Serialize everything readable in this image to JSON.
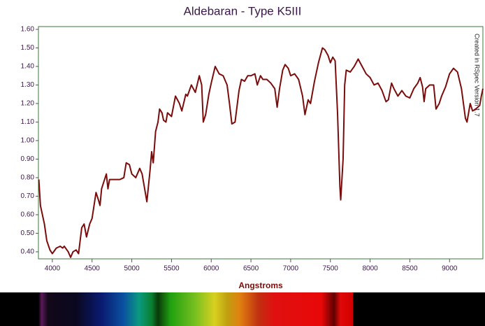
{
  "chart_data": {
    "type": "line",
    "title": "Aldebaran - Type K5III",
    "x_label": "Angstroms",
    "annotation": "Created in RSpec Version 1.7",
    "x": [
      3830,
      3850,
      3900,
      3930,
      3970,
      4000,
      4050,
      4100,
      4130,
      4150,
      4200,
      4230,
      4260,
      4300,
      4330,
      4370,
      4400,
      4430,
      4470,
      4500,
      4550,
      4580,
      4600,
      4620,
      4650,
      4680,
      4700,
      4720,
      4780,
      4850,
      4900,
      4930,
      4970,
      5000,
      5050,
      5100,
      5130,
      5170,
      5190,
      5230,
      5250,
      5270,
      5300,
      5330,
      5350,
      5380,
      5400,
      5430,
      5450,
      5500,
      5550,
      5600,
      5630,
      5680,
      5700,
      5750,
      5800,
      5850,
      5880,
      5900,
      5930,
      5970,
      6000,
      6050,
      6100,
      6150,
      6200,
      6230,
      6260,
      6300,
      6350,
      6380,
      6420,
      6460,
      6500,
      6550,
      6580,
      6620,
      6650,
      6700,
      6750,
      6800,
      6830,
      6860,
      6900,
      6930,
      6970,
      7000,
      7050,
      7100,
      7150,
      7180,
      7220,
      7250,
      7300,
      7350,
      7400,
      7430,
      7470,
      7500,
      7530,
      7560,
      7590,
      7620,
      7630,
      7660,
      7680,
      7700,
      7750,
      7800,
      7850,
      7900,
      7950,
      8000,
      8050,
      8100,
      8150,
      8200,
      8230,
      8270,
      8300,
      8350,
      8400,
      8450,
      8500,
      8550,
      8600,
      8630,
      8660,
      8680,
      8700,
      8750,
      8800,
      8830,
      8870,
      8900,
      8950,
      9000,
      9050,
      9100,
      9150,
      9200,
      9220,
      9260,
      9290,
      9330,
      9380,
      9400,
      9420
    ],
    "series": [
      {
        "color": "#7a0c0c",
        "values": [
          0.79,
          0.65,
          0.55,
          0.46,
          0.41,
          0.39,
          0.42,
          0.43,
          0.42,
          0.43,
          0.4,
          0.37,
          0.4,
          0.41,
          0.39,
          0.53,
          0.55,
          0.48,
          0.55,
          0.58,
          0.72,
          0.68,
          0.65,
          0.74,
          0.78,
          0.82,
          0.74,
          0.79,
          0.79,
          0.79,
          0.8,
          0.88,
          0.87,
          0.82,
          0.8,
          0.85,
          0.82,
          0.72,
          0.67,
          0.84,
          0.94,
          0.88,
          1.05,
          1.1,
          1.17,
          1.15,
          1.11,
          1.1,
          1.15,
          1.13,
          1.24,
          1.2,
          1.16,
          1.25,
          1.24,
          1.3,
          1.26,
          1.35,
          1.3,
          1.1,
          1.14,
          1.25,
          1.31,
          1.4,
          1.36,
          1.35,
          1.3,
          1.2,
          1.09,
          1.1,
          1.27,
          1.33,
          1.32,
          1.35,
          1.35,
          1.36,
          1.3,
          1.35,
          1.33,
          1.33,
          1.31,
          1.28,
          1.18,
          1.28,
          1.38,
          1.41,
          1.39,
          1.35,
          1.36,
          1.33,
          1.24,
          1.14,
          1.22,
          1.2,
          1.32,
          1.42,
          1.5,
          1.49,
          1.46,
          1.42,
          1.45,
          1.43,
          1.15,
          0.75,
          0.68,
          0.9,
          1.3,
          1.38,
          1.37,
          1.4,
          1.44,
          1.4,
          1.36,
          1.34,
          1.3,
          1.31,
          1.27,
          1.21,
          1.22,
          1.31,
          1.28,
          1.24,
          1.27,
          1.24,
          1.23,
          1.28,
          1.31,
          1.34,
          1.29,
          1.21,
          1.28,
          1.3,
          1.3,
          1.17,
          1.2,
          1.24,
          1.29,
          1.36,
          1.39,
          1.37,
          1.28,
          1.12,
          1.1,
          1.2,
          1.16,
          1.17,
          1.19,
          1.24,
          1.28
        ]
      }
    ],
    "xlim": [
      3825,
      9420
    ],
    "xticks": [
      4000,
      4500,
      5000,
      5500,
      6000,
      6500,
      7000,
      7500,
      8000,
      8500,
      9000
    ],
    "ylim": [
      0.362,
      1.615
    ],
    "yticks": [
      {
        "value": 0.4,
        "label": "0.40"
      },
      {
        "value": 0.5,
        "label": "0.50"
      },
      {
        "value": 0.6,
        "label": "0.60"
      },
      {
        "value": 0.7,
        "label": "0.70"
      },
      {
        "value": 0.8,
        "label": "0.80"
      },
      {
        "value": 0.9,
        "label": "0.90"
      },
      {
        "value": 1.0,
        "label": "1.00"
      },
      {
        "value": 1.1,
        "label": "1.10"
      },
      {
        "value": 1.2,
        "label": "1.20"
      },
      {
        "value": 1.3,
        "label": "1.30"
      },
      {
        "value": 1.4,
        "label": "1.40"
      },
      {
        "value": 1.5,
        "label": "1.50"
      },
      {
        "value": 1.6,
        "label": "1.60"
      }
    ],
    "grid": false
  }
}
